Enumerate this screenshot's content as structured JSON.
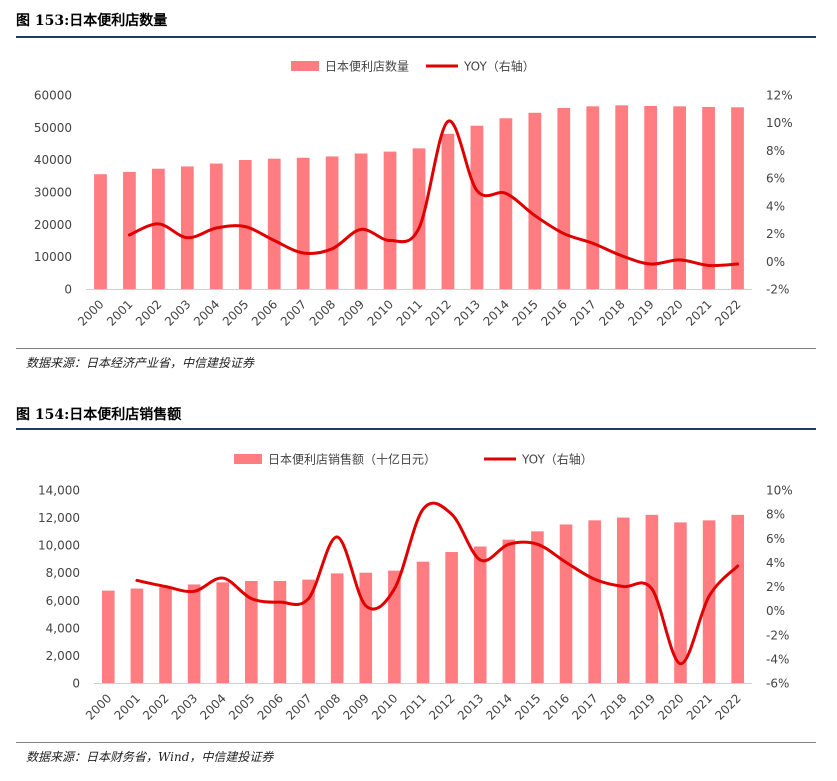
{
  "figures": [
    {
      "title": "图 153:日本便利店数量",
      "source": "数据来源：日本经济产业省，中信建投证券"
    },
    {
      "title": "图 154:日本便利店销售额",
      "source": "数据来源：日本财务省，Wind，中信建投证券"
    }
  ],
  "colors": {
    "bar": "#FF7C80",
    "line": "#E00000",
    "title_rule": "#1F3864"
  },
  "chart_data": [
    {
      "type": "bar",
      "combo": "bar + line (secondary axis)",
      "legend_position": "top-center",
      "categories": [
        "2000",
        "2001",
        "2002",
        "2003",
        "2004",
        "2005",
        "2006",
        "2007",
        "2008",
        "2009",
        "2010",
        "2011",
        "2012",
        "2013",
        "2014",
        "2015",
        "2016",
        "2017",
        "2018",
        "2019",
        "2020",
        "2021",
        "2022"
      ],
      "series": [
        {
          "name": "日本便利店数量",
          "kind": "bar",
          "axis": "left",
          "values": [
            35500,
            36200,
            37200,
            37900,
            38800,
            39900,
            40300,
            40600,
            41000,
            41900,
            42500,
            43500,
            48000,
            50500,
            52800,
            54500,
            56000,
            56500,
            56800,
            56600,
            56500,
            56300,
            56200
          ]
        },
        {
          "name": "YOY（右轴）",
          "kind": "line",
          "axis": "right",
          "values": [
            null,
            1.9,
            2.7,
            1.7,
            2.4,
            2.5,
            1.5,
            0.6,
            0.9,
            2.3,
            1.5,
            2.4,
            10.1,
            5.1,
            4.9,
            3.3,
            2.0,
            1.3,
            0.4,
            -0.2,
            0.1,
            -0.3,
            -0.2
          ]
        }
      ],
      "yticks_left": [
        "0",
        "10000",
        "20000",
        "30000",
        "40000",
        "50000",
        "60000"
      ],
      "yticks_right": [
        "-2%",
        "0%",
        "2%",
        "4%",
        "6%",
        "8%",
        "10%",
        "12%"
      ],
      "ylim_left": [
        0,
        60000
      ],
      "ylim_right": [
        -2,
        12
      ],
      "grid": false
    },
    {
      "type": "bar",
      "combo": "bar + line (secondary axis)",
      "legend_position": "top-center",
      "categories": [
        "2000",
        "2001",
        "2002",
        "2003",
        "2004",
        "2005",
        "2006",
        "2007",
        "2008",
        "2009",
        "2010",
        "2011",
        "2012",
        "2013",
        "2014",
        "2015",
        "2016",
        "2017",
        "2018",
        "2019",
        "2020",
        "2021",
        "2022"
      ],
      "series": [
        {
          "name": "日本便利店销售额（十亿日元）",
          "kind": "bar",
          "axis": "left",
          "values": [
            6700,
            6850,
            6950,
            7150,
            7300,
            7400,
            7400,
            7500,
            7950,
            8000,
            8150,
            8800,
            9500,
            9900,
            10400,
            11000,
            11500,
            11800,
            12000,
            12200,
            11650,
            11800,
            12200
          ]
        },
        {
          "name": "YOY（右轴）",
          "kind": "line",
          "axis": "right",
          "values": [
            null,
            2.5,
            2.0,
            1.6,
            2.7,
            1.0,
            0.7,
            1.0,
            6.1,
            0.4,
            1.8,
            8.4,
            8.0,
            4.2,
            5.5,
            5.5,
            4.0,
            2.6,
            2.0,
            1.8,
            -4.4,
            1.2,
            3.7
          ]
        }
      ],
      "yticks_left": [
        "0",
        "2,000",
        "4,000",
        "6,000",
        "8,000",
        "10,000",
        "12,000",
        "14,000"
      ],
      "yticks_right": [
        "-6%",
        "-4%",
        "-2%",
        "0%",
        "2%",
        "4%",
        "6%",
        "8%",
        "10%"
      ],
      "ylim_left": [
        0,
        14000
      ],
      "ylim_right": [
        -6,
        10
      ],
      "grid": false
    }
  ]
}
